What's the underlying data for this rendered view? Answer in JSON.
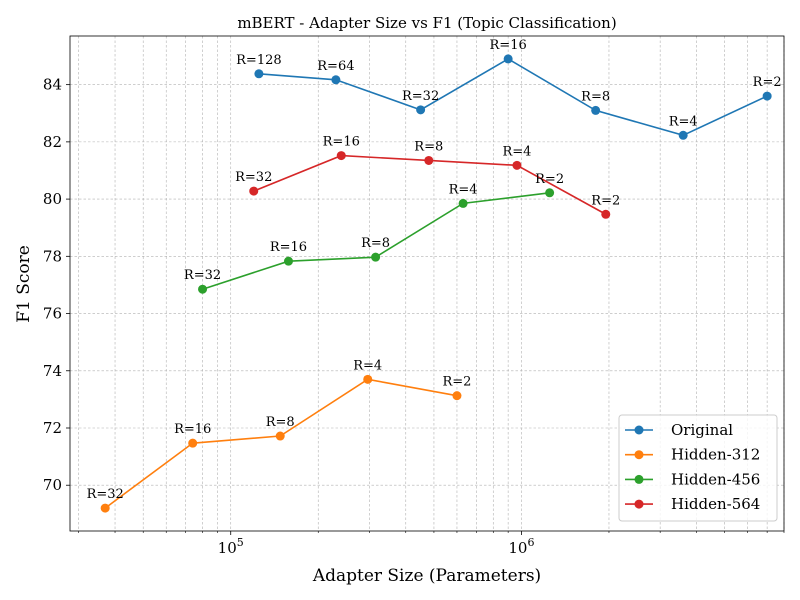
{
  "chart_data": {
    "type": "line",
    "title": "mBERT - Adapter Size vs F1 (Topic Classification)",
    "xlabel": "Adapter Size (Parameters)",
    "ylabel": "F1 Score",
    "xscale": "log",
    "xlim": [
      28000,
      8000000
    ],
    "ylim": [
      68.4,
      85.7
    ],
    "yticks": [
      70,
      72,
      74,
      76,
      78,
      80,
      82,
      84
    ],
    "xticks": [
      {
        "value": 100000,
        "base": "10",
        "exp": "5"
      },
      {
        "value": 1000000,
        "base": "10",
        "exp": "6"
      }
    ],
    "grid": true,
    "legend_position": "lower-right",
    "series": [
      {
        "name": "Original",
        "color": "#1f77b4",
        "points": [
          {
            "x": 125000,
            "y": 84.38,
            "label": "R=128"
          },
          {
            "x": 230000,
            "y": 84.17,
            "label": "R=64"
          },
          {
            "x": 450000,
            "y": 83.12,
            "label": "R=32"
          },
          {
            "x": 900000,
            "y": 84.9,
            "label": "R=16"
          },
          {
            "x": 1800000,
            "y": 83.1,
            "label": "R=8"
          },
          {
            "x": 3600000,
            "y": 82.23,
            "label": "R=4"
          },
          {
            "x": 7000000,
            "y": 83.6,
            "label": "R=2"
          }
        ]
      },
      {
        "name": "Hidden-312",
        "color": "#ff7f0e",
        "points": [
          {
            "x": 37000,
            "y": 69.2,
            "label": "R=32"
          },
          {
            "x": 74000,
            "y": 71.47,
            "label": "R=16"
          },
          {
            "x": 148000,
            "y": 71.72,
            "label": "R=8"
          },
          {
            "x": 296000,
            "y": 73.7,
            "label": "R=4"
          },
          {
            "x": 600000,
            "y": 73.13,
            "label": "R=2"
          }
        ]
      },
      {
        "name": "Hidden-456",
        "color": "#2ca02c",
        "points": [
          {
            "x": 80000,
            "y": 76.85,
            "label": "R=32"
          },
          {
            "x": 158000,
            "y": 77.83,
            "label": "R=16"
          },
          {
            "x": 315000,
            "y": 77.97,
            "label": "R=8"
          },
          {
            "x": 630000,
            "y": 79.85,
            "label": "R=4"
          },
          {
            "x": 1250000,
            "y": 80.22,
            "label": "R=2"
          }
        ]
      },
      {
        "name": "Hidden-564",
        "color": "#d62728",
        "points": [
          {
            "x": 120000,
            "y": 80.28,
            "label": "R=32"
          },
          {
            "x": 240000,
            "y": 81.52,
            "label": "R=16"
          },
          {
            "x": 480000,
            "y": 81.35,
            "label": "R=8"
          },
          {
            "x": 965000,
            "y": 81.18,
            "label": "R=4"
          },
          {
            "x": 1950000,
            "y": 79.47,
            "label": "R=2"
          }
        ]
      }
    ]
  }
}
